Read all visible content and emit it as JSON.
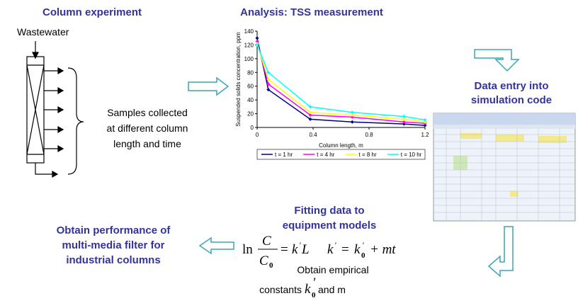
{
  "column_experiment": {
    "title": "Column experiment",
    "inlet": "Wastewater",
    "samples": [
      "Samples collected",
      "at different column",
      "length and time"
    ]
  },
  "chart_data": {
    "type": "line",
    "title": "Analysis: TSS measurement",
    "x_label": "Column length, m",
    "y_label": "Suspended solids concentration, ppm",
    "x": [
      0,
      0.08,
      0.38,
      0.68,
      1.05,
      1.2
    ],
    "series": [
      {
        "name": "t = 1 hr",
        "color": "#000080",
        "values": [
          130,
          55,
          12,
          8,
          5,
          3
        ]
      },
      {
        "name": "t = 4 hr",
        "color": "#ff00ff",
        "values": [
          125,
          63,
          18,
          15,
          8,
          6
        ]
      },
      {
        "name": "t = 8 hr",
        "color": "#ffff00",
        "values": [
          122,
          70,
          22,
          18,
          12,
          8
        ]
      },
      {
        "name": "t = 10 hr",
        "color": "#00ffff",
        "values": [
          120,
          80,
          30,
          22,
          16,
          11
        ]
      }
    ],
    "xlim": [
      0,
      1.2
    ],
    "xticks": [
      0,
      0.4,
      0.8,
      1.2
    ],
    "ylim": [
      0,
      140
    ],
    "yticks": [
      0,
      20,
      40,
      60,
      80,
      100,
      120,
      140
    ],
    "legend": "bottom"
  },
  "data_entry": {
    "title": [
      "Data entry into",
      "simulation code"
    ]
  },
  "fitting": {
    "title": [
      "Fitting data to",
      "equipment models"
    ],
    "equation1": {
      "ln": "ln",
      "num": "C",
      "den": "C",
      "den_sub": "0",
      "eq": "=",
      "k": "k",
      "prime": "'",
      "L": "L"
    },
    "equation2": {
      "k": "k",
      "prime": "'",
      "eq": "=",
      "k0": "k",
      "k0_prime": "'",
      "k0_sub": "0",
      "rest": "+ mt"
    },
    "note": [
      "Obtain empirical",
      "constants",
      "k",
      "'",
      "0",
      "and m"
    ]
  },
  "performance": {
    "title": [
      "Obtain performance of",
      "multi-media filter for",
      "industrial columns"
    ]
  }
}
